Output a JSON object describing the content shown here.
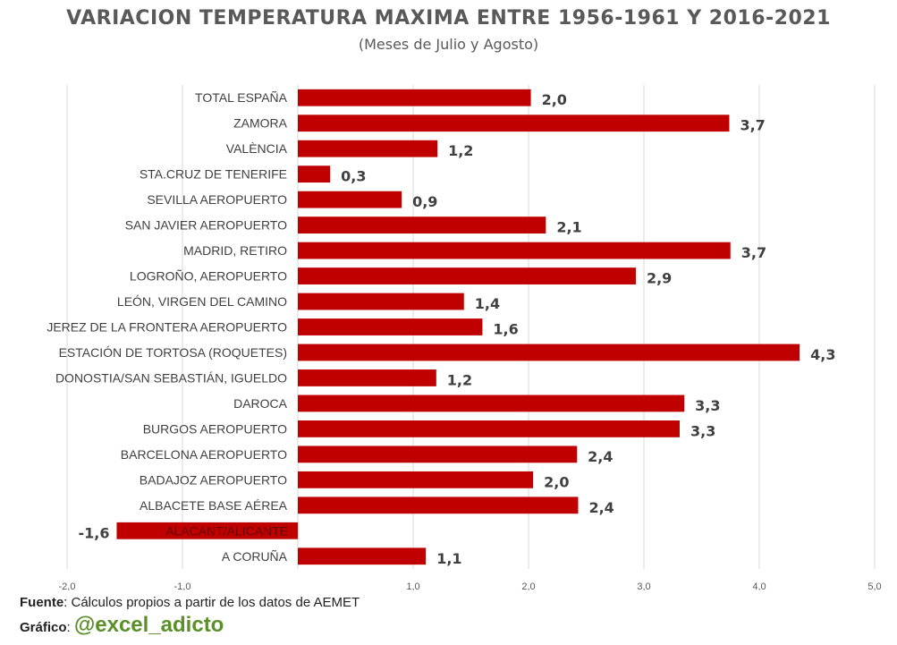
{
  "chart_data": {
    "type": "bar",
    "orientation": "horizontal",
    "title": "VARIACION TEMPERATURA MAXIMA ENTRE 1956-1961 Y 2016-2021",
    "subtitle": "(Meses de Julio y Agosto)",
    "categories": [
      "TOTAL ESPAÑA",
      "ZAMORA",
      "VALÈNCIA",
      "STA.CRUZ DE TENERIFE",
      "SEVILLA AEROPUERTO",
      "SAN JAVIER AEROPUERTO",
      "MADRID, RETIRO",
      "LOGROÑO, AEROPUERTO",
      "LEÓN, VIRGEN DEL CAMINO",
      "JEREZ DE LA FRONTERA AEROPUERTO",
      "ESTACIÓN DE TORTOSA (ROQUETES)",
      "DONOSTIA/SAN SEBASTIÁN, IGUELDO",
      "DAROCA",
      "BURGOS AEROPUERTO",
      "BARCELONA AEROPUERTO",
      "BADAJOZ AEROPUERTO",
      "ALBACETE BASE AÉREA",
      "ALACANT/ALICANTE",
      "A CORUÑA"
    ],
    "values": [
      2.02,
      3.74,
      1.21,
      0.28,
      0.9,
      2.15,
      3.75,
      2.93,
      1.44,
      1.6,
      4.35,
      1.2,
      3.35,
      3.31,
      2.42,
      2.04,
      2.43,
      -1.57,
      1.11
    ],
    "value_labels": [
      "2,0",
      "3,7",
      "1,2",
      "0,3",
      "0,9",
      "2,1",
      "3,7",
      "2,9",
      "1,4",
      "1,6",
      "4,3",
      "1,2",
      "3,3",
      "3,3",
      "2,4",
      "2,0",
      "2,4",
      "-1,6",
      "1,1"
    ],
    "xlim": [
      -2.0,
      5.0
    ],
    "xticks": [
      -2.0,
      -1.0,
      0.0,
      1.0,
      2.0,
      3.0,
      4.0,
      5.0
    ],
    "xtick_labels": [
      "-2,0",
      "-1,0",
      "",
      "1,0",
      "2,0",
      "3,0",
      "4,0",
      "5,0"
    ],
    "grid": true,
    "xlabel": "",
    "ylabel": "",
    "bar_color": "#c00000",
    "grid_color": "#d9d9d9",
    "label_color": "#404040"
  },
  "footer": {
    "source_label": "Fuente",
    "source_text": ": Cálculos propios a partir de los datos de AEMET",
    "credit_label": "Gráfico",
    "credit_sep": ":",
    "credit_handle": "@excel_adicto"
  }
}
